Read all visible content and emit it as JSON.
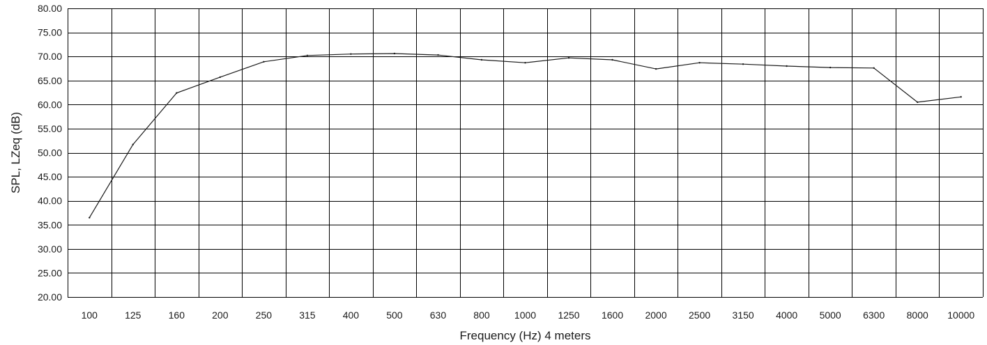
{
  "chart_data": {
    "type": "line",
    "title": "",
    "xlabel": "Frequency (Hz) 4 meters",
    "ylabel": "SPL, LZeq (dB)",
    "ylim": [
      20,
      80
    ],
    "ystep": 5,
    "grid": true,
    "legend": "none",
    "colors": {
      "line": "#1a1a1a",
      "grid": "#000000",
      "text": "#1a1a1a"
    },
    "categories": [
      "100",
      "125",
      "160",
      "200",
      "250",
      "315",
      "400",
      "500",
      "630",
      "800",
      "1000",
      "1250",
      "1600",
      "2000",
      "2500",
      "3150",
      "4000",
      "5000",
      "6300",
      "8000",
      "10000"
    ],
    "y_tick_labels": [
      "80.00",
      "75.00",
      "70.00",
      "65.00",
      "60.00",
      "55.00",
      "50.00",
      "45.00",
      "40.00",
      "35.00",
      "30.00",
      "25.00",
      "20.00"
    ],
    "series": [
      {
        "x": [
          100,
          125,
          160,
          200,
          250,
          315,
          400,
          500,
          630,
          800,
          1000,
          1250,
          1600,
          2000,
          2500,
          3150,
          4000,
          5000,
          6300,
          8000,
          10000
        ],
        "values": [
          36.5,
          51.7,
          62.4,
          65.7,
          68.9,
          70.2,
          70.5,
          70.6,
          70.3,
          69.3,
          68.7,
          69.7,
          69.3,
          67.4,
          68.7,
          68.4,
          68.0,
          67.7,
          67.6,
          60.5,
          61.6
        ]
      }
    ]
  }
}
